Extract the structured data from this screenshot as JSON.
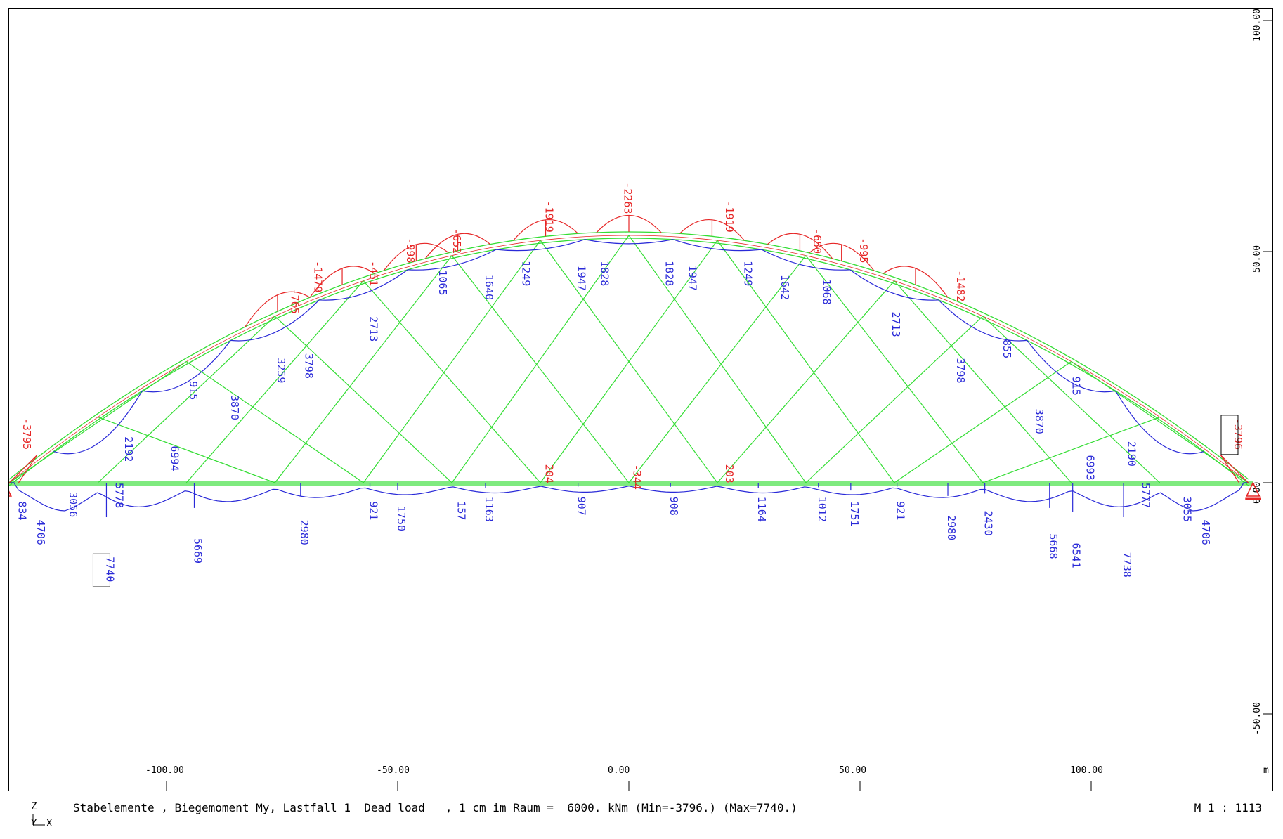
{
  "status": {
    "text": "Stabelemente , Biegemoment My, Lastfall 1  Dead load   , 1 cm im Raum =  6000. kNm (Min=-3796.) (Max=7740.)",
    "scale": "M 1 : 1113"
  },
  "axis_icon": {
    "z": "Z",
    "y": "Y",
    "x": "X"
  },
  "axes": {
    "unit": "m",
    "x_ticks": [
      {
        "v": -100,
        "label": "-100.00"
      },
      {
        "v": -50,
        "label": "-50.00"
      },
      {
        "v": 0,
        "label": "0.00"
      },
      {
        "v": 50,
        "label": "50.00"
      },
      {
        "v": 100,
        "label": "100.00"
      }
    ],
    "z_ticks": [
      {
        "v": 100,
        "label": "100.00"
      },
      {
        "v": 50,
        "label": "50.00"
      },
      {
        "v": 0,
        "label": "0.00"
      },
      {
        "v": -50,
        "label": "-50.00"
      }
    ]
  },
  "colors": {
    "structure": "#33dd33",
    "positive": "#2a2ad8",
    "negative": "#e62626",
    "frame": "#000000"
  },
  "structure": {
    "span_half": 134,
    "rise": 53.5,
    "node_spacing": 19.14
  },
  "labels_arch_blue": [
    {
      "x": -132,
      "z": -4,
      "t": "834"
    },
    {
      "x": -128,
      "z": -8,
      "t": "4706"
    },
    {
      "x": -121,
      "z": -2,
      "t": "3056"
    },
    {
      "x": -111,
      "z": 0,
      "t": "5778"
    },
    {
      "x": -109,
      "z": 10,
      "t": "2192"
    },
    {
      "x": -99,
      "z": 8,
      "t": "6994"
    },
    {
      "x": -95,
      "z": 22,
      "t": "915"
    },
    {
      "x": -86,
      "z": 19,
      "t": "3870"
    },
    {
      "x": -76,
      "z": 27,
      "t": "3259"
    },
    {
      "x": -70,
      "z": 28,
      "t": "3798"
    },
    {
      "x": -56,
      "z": 36,
      "t": "2713"
    },
    {
      "x": -41,
      "z": 46,
      "t": "1065"
    },
    {
      "x": -31,
      "z": 45,
      "t": "1640"
    },
    {
      "x": -23,
      "z": 48,
      "t": "1249"
    },
    {
      "x": -11,
      "z": 47,
      "t": "1947"
    },
    {
      "x": -6,
      "z": 48,
      "t": "1828"
    },
    {
      "x": 8,
      "z": 48,
      "t": "1828"
    },
    {
      "x": 13,
      "z": 47,
      "t": "1947"
    },
    {
      "x": 25,
      "z": 48,
      "t": "1249"
    },
    {
      "x": 33,
      "z": 45,
      "t": "1642"
    },
    {
      "x": 42,
      "z": 44,
      "t": "1068"
    },
    {
      "x": 57,
      "z": 37,
      "t": "2713"
    },
    {
      "x": 71,
      "z": 27,
      "t": "3798"
    },
    {
      "x": 81,
      "z": 31,
      "t": "855"
    },
    {
      "x": 88,
      "z": 16,
      "t": "3870"
    },
    {
      "x": 96,
      "z": 23,
      "t": "915"
    },
    {
      "x": 99,
      "z": 6,
      "t": "6993"
    },
    {
      "x": 108,
      "z": 9,
      "t": "2190"
    },
    {
      "x": 111,
      "z": 0,
      "t": "5777"
    },
    {
      "x": 120,
      "z": -3,
      "t": "3055"
    },
    {
      "x": 124,
      "z": -8,
      "t": "4706"
    }
  ],
  "labels_deck_blue": [
    {
      "x": -113,
      "z": -16,
      "t": "7740",
      "boxed": true
    },
    {
      "x": -94,
      "z": -12,
      "t": "5669"
    },
    {
      "x": -71,
      "z": -8,
      "t": "2980"
    },
    {
      "x": -56,
      "z": -4,
      "t": "921"
    },
    {
      "x": -50,
      "z": -5,
      "t": "1750"
    },
    {
      "x": -37,
      "z": -4,
      "t": "157"
    },
    {
      "x": -31,
      "z": -3,
      "t": "1163"
    },
    {
      "x": -11,
      "z": -3,
      "t": "907"
    },
    {
      "x": 9,
      "z": -3,
      "t": "908"
    },
    {
      "x": 28,
      "z": -3,
      "t": "1164"
    },
    {
      "x": 41,
      "z": -3,
      "t": "1012"
    },
    {
      "x": 48,
      "z": -4,
      "t": "1751"
    },
    {
      "x": 58,
      "z": -4,
      "t": "921"
    },
    {
      "x": 69,
      "z": -7,
      "t": "2980"
    },
    {
      "x": 77,
      "z": -6,
      "t": "2430"
    },
    {
      "x": 91,
      "z": -11,
      "t": "5668"
    },
    {
      "x": 96,
      "z": -13,
      "t": "6541"
    },
    {
      "x": 107,
      "z": -15,
      "t": "7738"
    }
  ],
  "labels_red": [
    {
      "x": -131,
      "z": 14,
      "t": "-3795"
    },
    {
      "x": -73,
      "z": 42,
      "t": "-765"
    },
    {
      "x": -68,
      "z": 48,
      "t": "-1479"
    },
    {
      "x": -56,
      "z": 48,
      "t": "-451"
    },
    {
      "x": -48,
      "z": 53,
      "t": "-998"
    },
    {
      "x": -38,
      "z": 55,
      "t": "-652"
    },
    {
      "x": -18,
      "z": 61,
      "t": "-1919"
    },
    {
      "x": -1,
      "z": 65,
      "t": "-2263"
    },
    {
      "x": 21,
      "z": 61,
      "t": "-1919"
    },
    {
      "x": 40,
      "z": 55,
      "t": "-650"
    },
    {
      "x": 50,
      "z": 53,
      "t": "-995"
    },
    {
      "x": 71,
      "z": 46,
      "t": "-1482"
    },
    {
      "x": -18,
      "z": 4,
      "t": "204"
    },
    {
      "x": 1,
      "z": 4,
      "t": "-344"
    },
    {
      "x": 21,
      "z": 4,
      "t": "203"
    },
    {
      "x": 131,
      "z": 14,
      "t": "-3796",
      "boxed": true
    }
  ]
}
